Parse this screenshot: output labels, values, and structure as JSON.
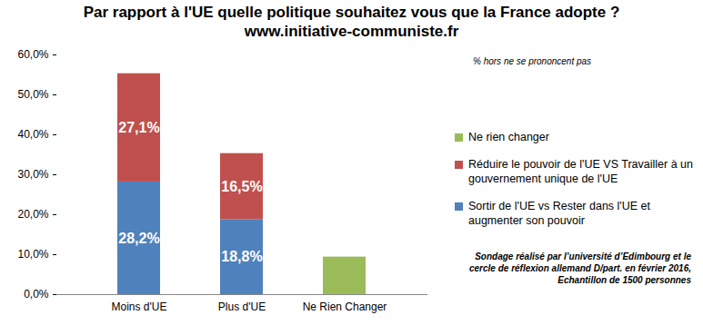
{
  "chart_data": {
    "type": "bar",
    "title": "Par rapport à l'UE quelle politique souhaitez vous que la France adopte ?",
    "subtitle": "www.initiative-communiste.fr",
    "annotations": [
      "% hors ne se prononcent pas",
      "Sondage réalisé par l’université d’Edimbourg et le cercle de réflexion allemand D/part. en février 2016, Echantillon de 1500 personnes"
    ],
    "categories": [
      "Moins d'UE",
      "Plus d'UE",
      "Ne Rien Changer"
    ],
    "series": [
      {
        "name": "Sortir de l'UE vs Rester dans l'UE et augmenter son pouvoir",
        "color": "#4F81BD",
        "values": [
          28.2,
          18.8,
          null
        ],
        "value_labels": [
          "28,2%",
          "18,8%",
          null
        ],
        "data_labels": true
      },
      {
        "name": "Réduire le pouvoir de l'UE VS Travailler à un gouvernement unique de l'UE",
        "color": "#C0504D",
        "values": [
          27.1,
          16.5,
          null
        ],
        "value_labels": [
          "27,1%",
          "16,5%",
          null
        ],
        "data_labels": true
      },
      {
        "name": "Ne rien changer",
        "color": "#9BBB59",
        "values": [
          null,
          null,
          9.4
        ],
        "data_labels": false
      }
    ],
    "stacked": true,
    "ylim": [
      0,
      60
    ],
    "yticks": [
      {
        "value": 0,
        "label": "0,0%"
      },
      {
        "value": 10,
        "label": "10,0%"
      },
      {
        "value": 20,
        "label": "20,0%"
      },
      {
        "value": 30,
        "label": "30,0%"
      },
      {
        "value": 40,
        "label": "40,0%"
      },
      {
        "value": 50,
        "label": "50,0%"
      },
      {
        "value": 60,
        "label": "60,0%"
      }
    ],
    "grid": false,
    "legend": "right"
  }
}
